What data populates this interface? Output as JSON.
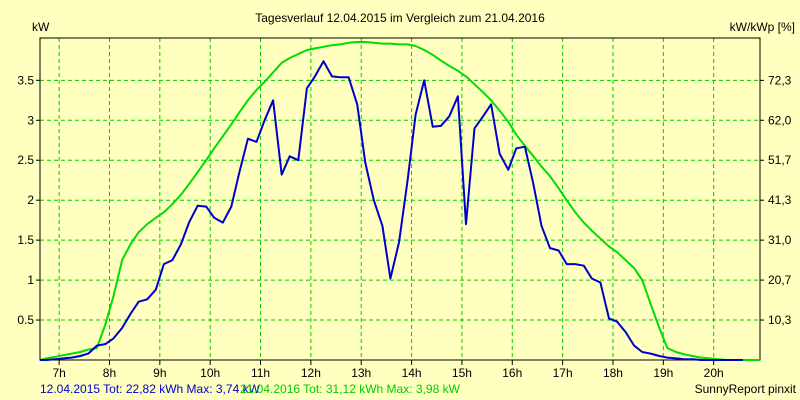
{
  "chart_data": {
    "type": "line",
    "title": "Tagesverlauf 12.04.2015 im Vergleich zum 21.04.2016",
    "ylabel_left": "kW",
    "ylabel_right": "kW/kWp [%]",
    "ylim": [
      0,
      4.03
    ],
    "x_range": [
      6.62,
      20.92
    ],
    "x_ticks": [
      "7h",
      "8h",
      "9h",
      "10h",
      "11h",
      "12h",
      "13h",
      "14h",
      "15h",
      "16h",
      "17h",
      "18h",
      "19h",
      "20h"
    ],
    "x_tick_values": [
      7,
      8,
      9,
      10,
      11,
      12,
      13,
      14,
      15,
      16,
      17,
      18,
      19,
      20
    ],
    "y_ticks_left": [
      "0.5",
      "1",
      "1.5",
      "2",
      "2.5",
      "3",
      "3.5"
    ],
    "y_tick_values_left": [
      0.5,
      1,
      1.5,
      2,
      2.5,
      3,
      3.5
    ],
    "y_ticks_right": [
      "10,3",
      "20,7",
      "31,0",
      "41,3",
      "51,7",
      "62,0",
      "72,3"
    ],
    "grid": true,
    "grid_color": "#00cc00",
    "series": [
      {
        "name": "12.04.2015",
        "color": "#0000cc",
        "x": [
          6.62,
          6.75,
          6.92,
          7.08,
          7.25,
          7.42,
          7.58,
          7.75,
          7.92,
          8.08,
          8.25,
          8.42,
          8.58,
          8.75,
          8.92,
          9.08,
          9.25,
          9.42,
          9.58,
          9.75,
          9.92,
          10.08,
          10.25,
          10.42,
          10.58,
          10.75,
          10.92,
          11.08,
          11.25,
          11.42,
          11.58,
          11.75,
          11.92,
          12.08,
          12.25,
          12.42,
          12.58,
          12.75,
          12.92,
          13.08,
          13.25,
          13.42,
          13.58,
          13.75,
          13.92,
          14.08,
          14.25,
          14.42,
          14.58,
          14.75,
          14.92,
          15.08,
          15.25,
          15.42,
          15.58,
          15.75,
          15.92,
          16.08,
          16.25,
          16.42,
          16.58,
          16.75,
          16.92,
          17.08,
          17.25,
          17.42,
          17.58,
          17.75,
          17.92,
          18.08,
          18.25,
          18.42,
          18.58,
          18.75,
          18.92,
          19.08,
          19.25,
          19.42,
          19.58,
          19.75,
          19.92,
          20.08,
          20.25,
          20.42,
          20.58
        ],
        "y": [
          0.0,
          0.0,
          0.01,
          0.02,
          0.03,
          0.05,
          0.08,
          0.18,
          0.2,
          0.27,
          0.4,
          0.58,
          0.73,
          0.76,
          0.88,
          1.2,
          1.25,
          1.45,
          1.72,
          1.93,
          1.92,
          1.78,
          1.72,
          1.92,
          2.35,
          2.77,
          2.73,
          3.0,
          3.25,
          2.32,
          2.55,
          2.5,
          3.4,
          3.55,
          3.74,
          3.55,
          3.54,
          3.54,
          3.2,
          2.47,
          2.0,
          1.68,
          1.02,
          1.47,
          2.25,
          3.07,
          3.5,
          2.92,
          2.93,
          3.05,
          3.3,
          1.7,
          2.9,
          3.05,
          3.2,
          2.58,
          2.38,
          2.65,
          2.67,
          2.2,
          1.68,
          1.4,
          1.37,
          1.2,
          1.2,
          1.18,
          1.02,
          0.97,
          0.52,
          0.48,
          0.35,
          0.18,
          0.1,
          0.08,
          0.05,
          0.03,
          0.02,
          0.01,
          0.01,
          0.0,
          0.0,
          0.0,
          0.0,
          0.0,
          0.0
        ]
      },
      {
        "name": "21.04.2016",
        "color": "#00dd00",
        "x": [
          6.62,
          6.75,
          6.92,
          7.08,
          7.25,
          7.42,
          7.58,
          7.75,
          7.92,
          8.08,
          8.25,
          8.42,
          8.58,
          8.75,
          8.92,
          9.08,
          9.25,
          9.42,
          9.58,
          9.75,
          9.92,
          10.08,
          10.25,
          10.42,
          10.58,
          10.75,
          10.92,
          11.08,
          11.25,
          11.42,
          11.58,
          11.75,
          11.92,
          12.08,
          12.25,
          12.42,
          12.58,
          12.75,
          12.92,
          13.08,
          13.25,
          13.42,
          13.58,
          13.75,
          13.92,
          14.08,
          14.25,
          14.42,
          14.58,
          14.75,
          14.92,
          15.08,
          15.25,
          15.42,
          15.58,
          15.75,
          15.92,
          16.08,
          16.25,
          16.42,
          16.58,
          16.75,
          16.92,
          17.08,
          17.25,
          17.42,
          17.58,
          17.75,
          17.92,
          18.08,
          18.25,
          18.42,
          18.58,
          18.75,
          18.92,
          19.08,
          19.25,
          19.42,
          19.58,
          19.75,
          19.92,
          20.08,
          20.25,
          20.42,
          20.58,
          20.75,
          20.92
        ],
        "y": [
          0.0,
          0.02,
          0.04,
          0.06,
          0.08,
          0.1,
          0.13,
          0.15,
          0.45,
          0.8,
          1.25,
          1.45,
          1.6,
          1.7,
          1.78,
          1.85,
          1.95,
          2.07,
          2.2,
          2.35,
          2.5,
          2.65,
          2.8,
          2.95,
          3.1,
          3.25,
          3.38,
          3.48,
          3.6,
          3.72,
          3.78,
          3.83,
          3.88,
          3.9,
          3.92,
          3.94,
          3.95,
          3.97,
          3.98,
          3.98,
          3.97,
          3.96,
          3.96,
          3.95,
          3.95,
          3.93,
          3.88,
          3.82,
          3.75,
          3.68,
          3.62,
          3.55,
          3.45,
          3.35,
          3.25,
          3.12,
          2.98,
          2.82,
          2.68,
          2.55,
          2.42,
          2.3,
          2.15,
          2.0,
          1.85,
          1.72,
          1.62,
          1.52,
          1.42,
          1.35,
          1.25,
          1.15,
          1.0,
          0.7,
          0.4,
          0.15,
          0.1,
          0.07,
          0.05,
          0.03,
          0.02,
          0.01,
          0.0,
          0.0,
          0.0,
          0.0,
          0.0
        ]
      }
    ],
    "footer": {
      "series1_text": "12.04.2015 Tot: 22,82 kWh Max: 3,74 kW",
      "series2_text": "21.04.2016 Tot: 31,12 kWh Max: 3,98 kW",
      "credit": "SunnyReport pinxit"
    }
  }
}
